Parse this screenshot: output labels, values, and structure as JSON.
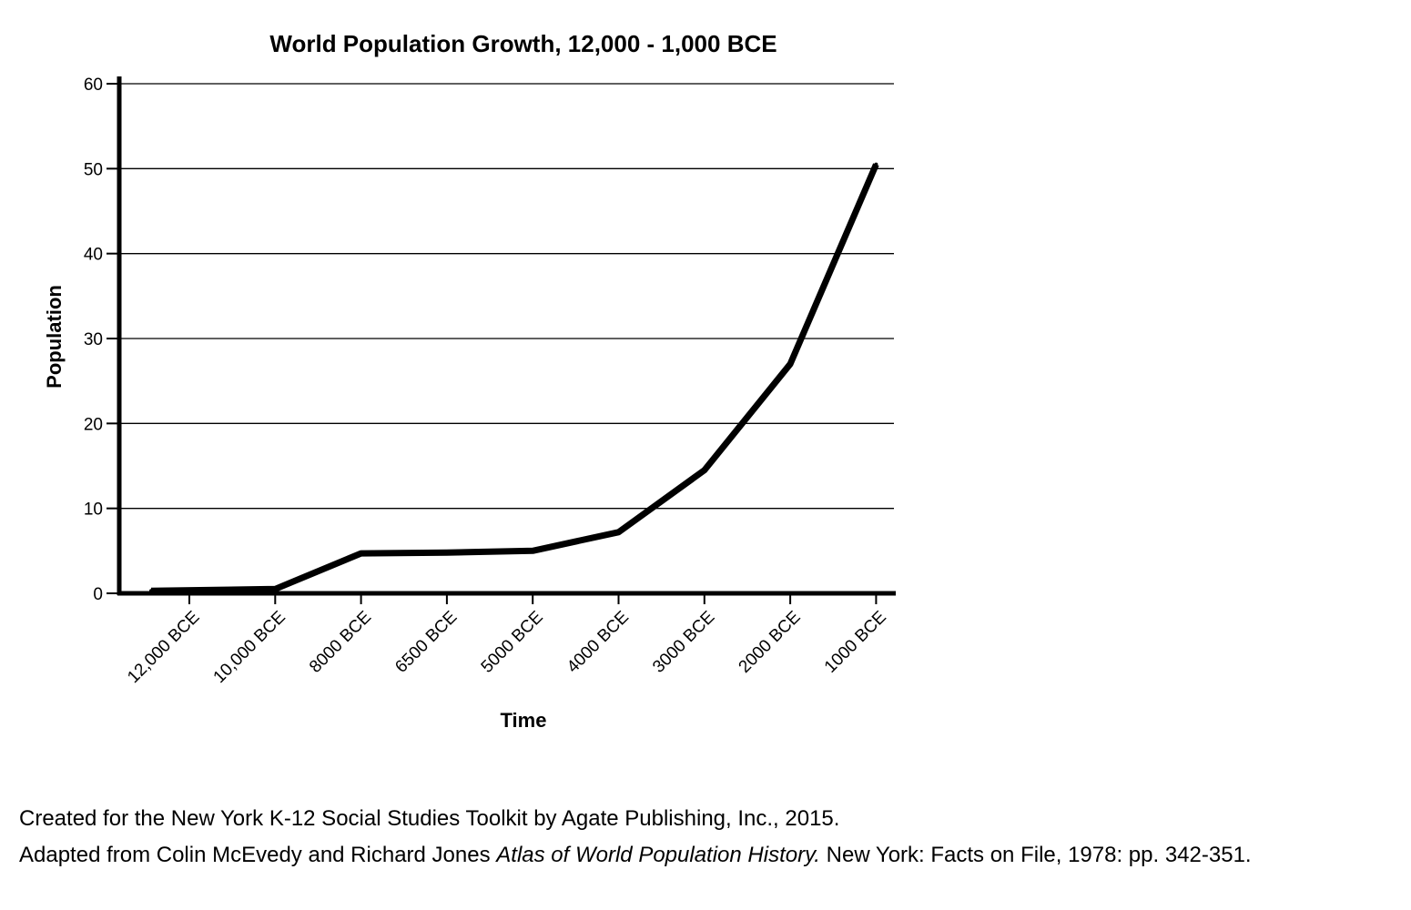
{
  "chart_data": {
    "type": "line",
    "title": "World Population Growth, 12,000 - 1,000 BCE",
    "xlabel": "Time",
    "ylabel": "Population",
    "categories": [
      "12,000 BCE",
      "10,000 BCE",
      "8000 BCE",
      "6500 BCE",
      "5000 BCE",
      "4000 BCE",
      "3000 BCE",
      "2000 BCE",
      "1000 BCE"
    ],
    "y_ticks": [
      "0",
      "10",
      "20",
      "30",
      "40",
      "50",
      "60"
    ],
    "ylim": [
      0,
      60
    ],
    "grid": "horizontal",
    "series": [
      {
        "values": [
          0.3,
          0.5,
          4.7,
          4.8,
          5.0,
          7.2,
          14.5,
          27.0,
          50.5
        ],
        "color": "#000000"
      }
    ]
  },
  "credits": {
    "line1": "Created for the New York K-12 Social Studies Toolkit by Agate Publishing, Inc., 2015.",
    "line2_prefix": "Adapted from Colin McEvedy and Richard Jones ",
    "line2_title": "Atlas of World Population History.",
    "line2_suffix": " New York: Facts on File, 1978: pp. 342-351."
  }
}
